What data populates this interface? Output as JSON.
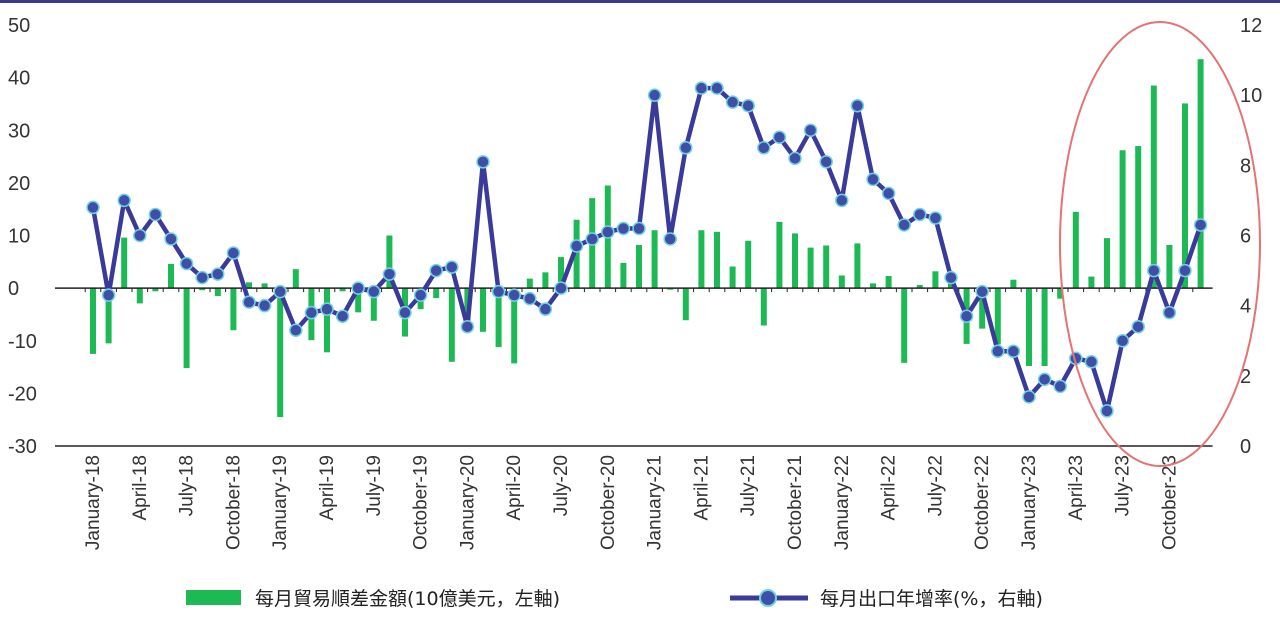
{
  "chart_data": {
    "type": "bar+line",
    "colors": {
      "bars": "#1db954",
      "line": "#3a3a9a",
      "marker_fill": "#3f4fa8",
      "marker_edge": "#6fd3e0",
      "highlight": "#e57373",
      "axis": "#222222",
      "top_rule": "#3a3a8c"
    },
    "left_axis": {
      "ylim": [
        -30,
        50
      ],
      "ticks": [
        "50",
        "40",
        "30",
        "20",
        "10",
        "0",
        "-10",
        "-20",
        "-30"
      ]
    },
    "right_axis": {
      "ylim": [
        0,
        12
      ],
      "ticks": [
        "12",
        "10",
        "8",
        "6",
        "4",
        "2",
        "0"
      ]
    },
    "x": [
      "2018-01",
      "2018-02",
      "2018-03",
      "2018-04",
      "2018-05",
      "2018-06",
      "2018-07",
      "2018-08",
      "2018-09",
      "2018-10",
      "2018-11",
      "2018-12",
      "2019-01",
      "2019-02",
      "2019-03",
      "2019-04",
      "2019-05",
      "2019-06",
      "2019-07",
      "2019-08",
      "2019-09",
      "2019-10",
      "2019-11",
      "2019-12",
      "2020-01",
      "2020-02",
      "2020-03",
      "2020-04",
      "2020-05",
      "2020-06",
      "2020-07",
      "2020-08",
      "2020-09",
      "2020-10",
      "2020-11",
      "2020-12",
      "2021-01",
      "2021-02",
      "2021-03",
      "2021-04",
      "2021-05",
      "2021-06",
      "2021-07",
      "2021-08",
      "2021-09",
      "2021-10",
      "2021-11",
      "2021-12",
      "2022-01",
      "2022-02",
      "2022-03",
      "2022-04",
      "2022-05",
      "2022-06",
      "2022-07",
      "2022-08",
      "2022-09",
      "2022-10",
      "2022-11",
      "2022-12",
      "2023-01",
      "2023-02",
      "2023-03",
      "2023-04",
      "2023-05",
      "2023-06",
      "2023-07",
      "2023-08",
      "2023-09",
      "2023-10",
      "2023-11",
      "2023-12"
    ],
    "x_tick_labels": [
      "January-18",
      "April-18",
      "July-18",
      "October-18",
      "January-19",
      "April-19",
      "July-19",
      "October-19",
      "January-20",
      "April-20",
      "July-20",
      "October-20",
      "January-21",
      "April-21",
      "July-21",
      "October-21",
      "January-22",
      "April-22",
      "July-22",
      "October-22",
      "January-23",
      "April-23",
      "July-23",
      "October-23"
    ],
    "series": [
      {
        "name": "每月貿易順差金額(10億美元，左軸)",
        "axis": "left",
        "type": "bar",
        "values": [
          -12.5,
          -10.5,
          9.6,
          -2.9,
          -0.6,
          4.6,
          -15.2,
          -0.4,
          -1.5,
          -8.0,
          1.1,
          0.9,
          -24.5,
          3.6,
          -9.9,
          -12.2,
          -0.6,
          -4.6,
          -6.2,
          10.0,
          -9.2,
          -4.0,
          -1.9,
          -14.0,
          -7.5,
          -8.3,
          -11.2,
          -14.3,
          1.8,
          3.0,
          5.9,
          13.0,
          17.1,
          19.5,
          4.8,
          8.2,
          11.0,
          -0.3,
          -6.1,
          11.0,
          10.7,
          4.1,
          9.0,
          -7.1,
          12.6,
          10.4,
          7.7,
          8.1,
          2.4,
          8.5,
          0.9,
          2.3,
          -14.2,
          0.6,
          3.2,
          3.0,
          -10.6,
          -7.7,
          -10.7,
          1.6,
          -14.8,
          -14.8,
          -2.0,
          14.5,
          2.2,
          9.5,
          26.2,
          27.0,
          38.5,
          8.2,
          35.1,
          43.5
        ]
      },
      {
        "name": "每月出口年增率(%，右軸)",
        "axis": "right",
        "type": "line",
        "values": [
          6.8,
          4.3,
          7.0,
          6.0,
          6.6,
          5.9,
          5.2,
          4.8,
          4.9,
          5.5,
          4.1,
          4.0,
          4.4,
          3.3,
          3.8,
          3.9,
          3.7,
          4.5,
          4.4,
          4.9,
          3.8,
          4.3,
          5.0,
          5.1,
          3.4,
          8.1,
          4.4,
          4.3,
          4.2,
          3.9,
          4.5,
          5.7,
          5.9,
          6.1,
          6.2,
          6.2,
          10.0,
          5.9,
          8.5,
          10.2,
          10.2,
          9.8,
          9.7,
          8.5,
          8.8,
          8.2,
          9.0,
          8.1,
          7.0,
          9.7,
          7.6,
          7.2,
          6.3,
          6.6,
          6.5,
          4.8,
          3.7,
          4.4,
          2.7,
          2.7,
          1.4,
          1.9,
          1.7,
          2.5,
          2.4,
          1.0,
          3.0,
          3.4,
          5.0,
          3.8,
          5.0,
          6.3
        ]
      }
    ]
  }
}
